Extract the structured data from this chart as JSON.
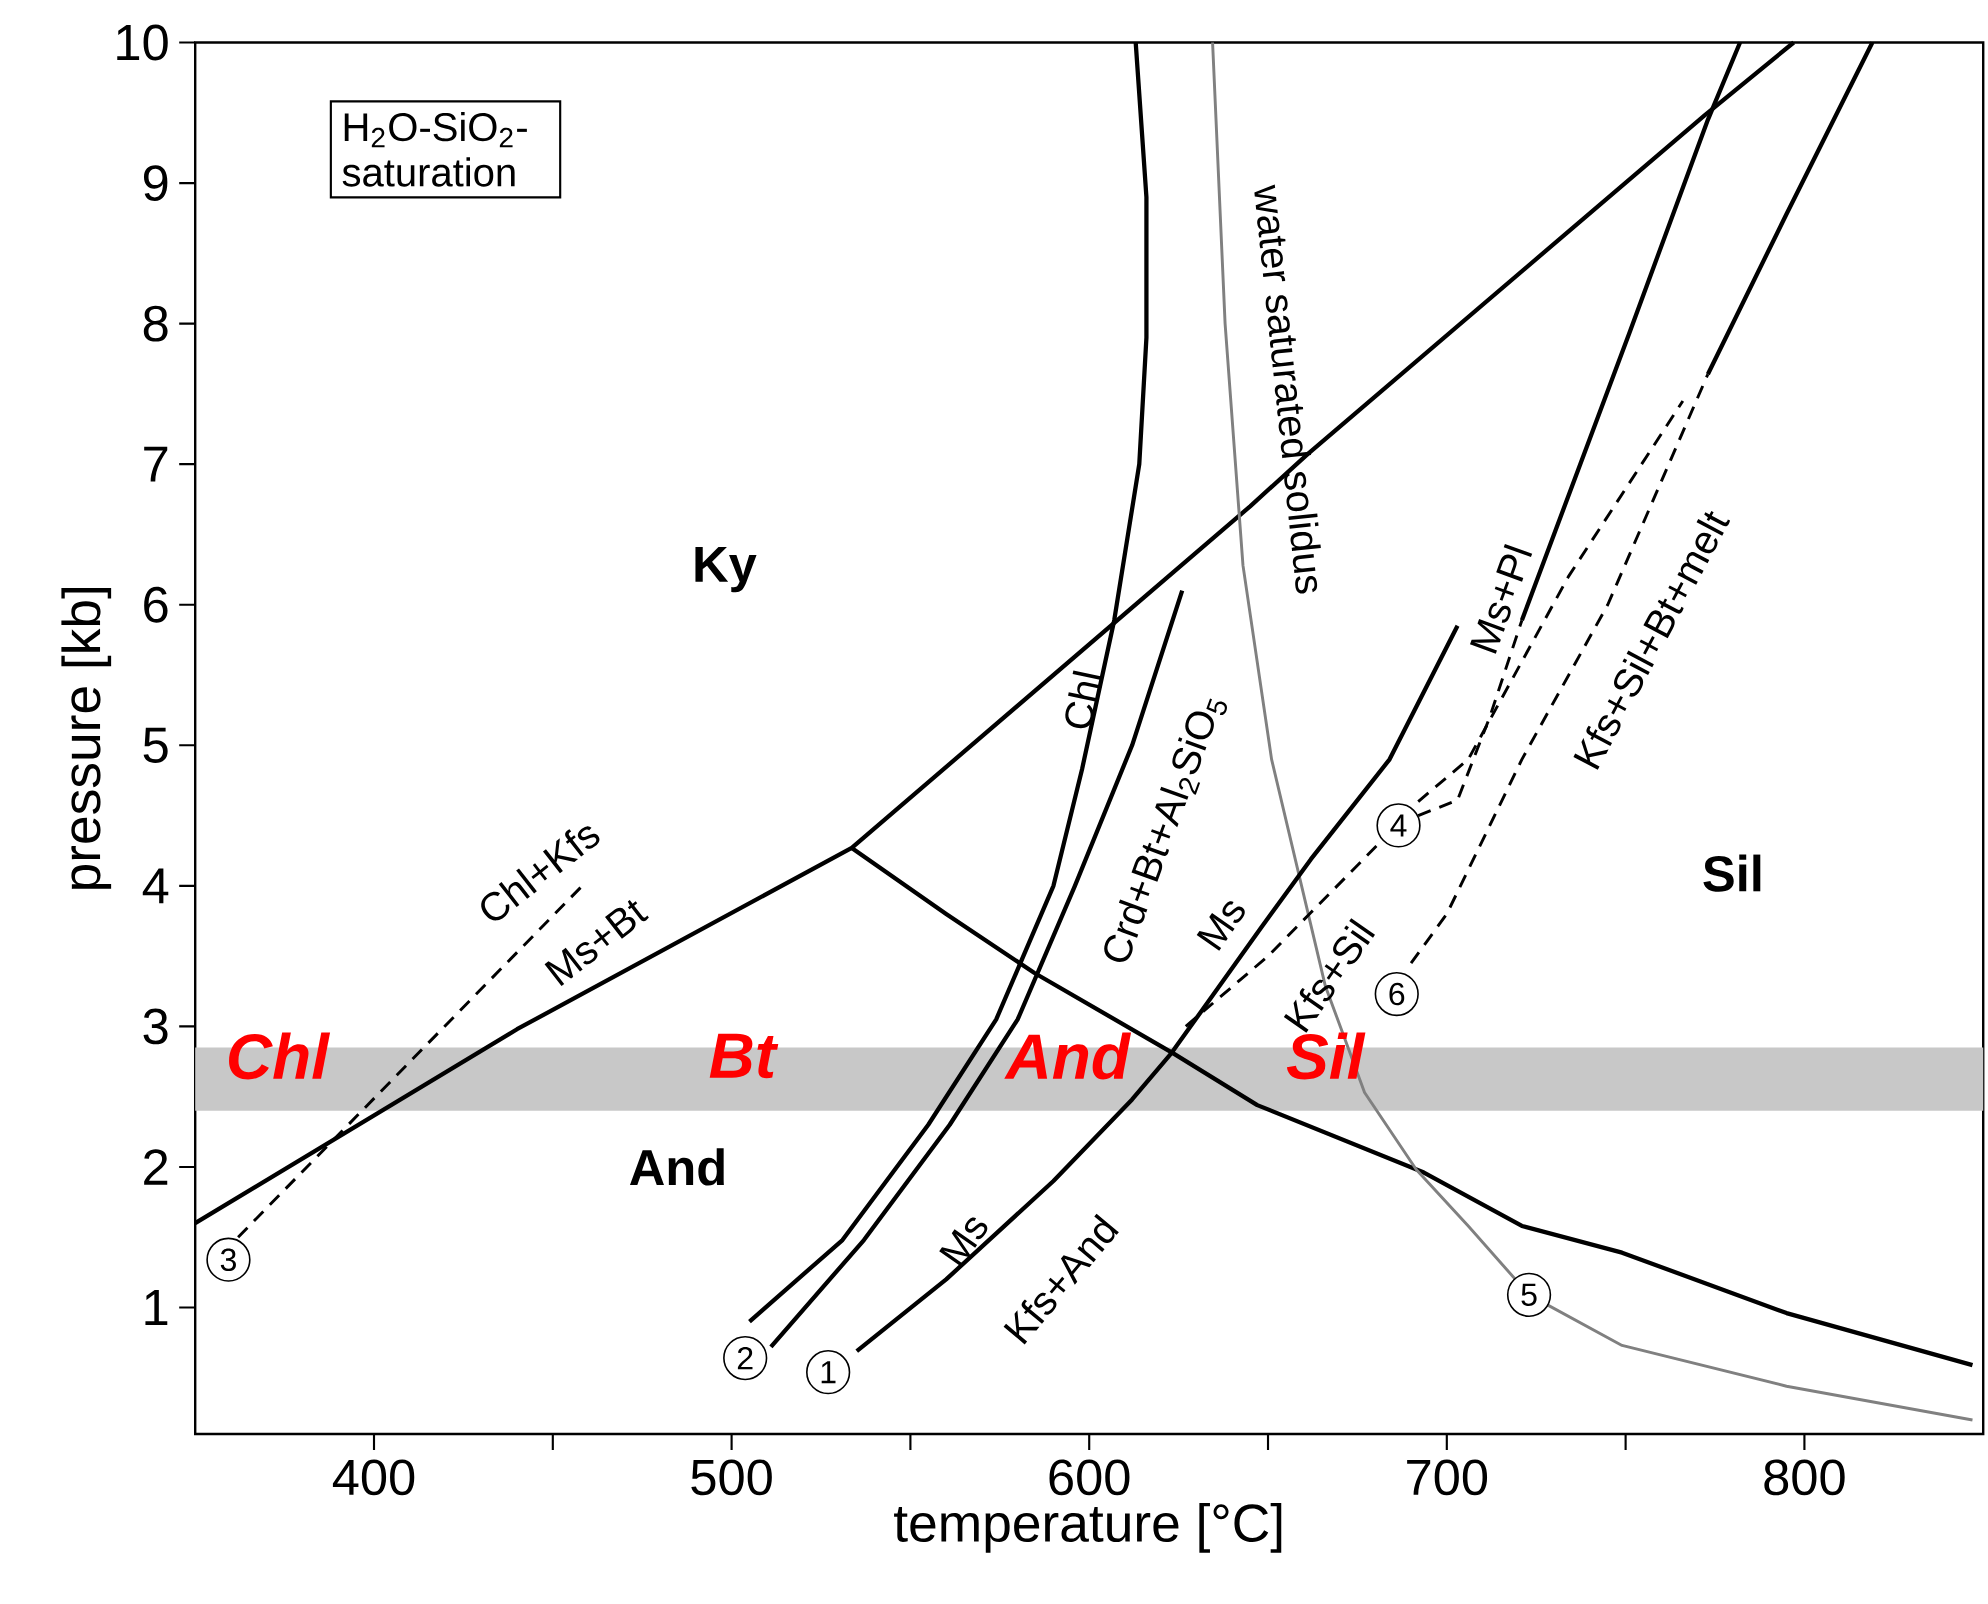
{
  "chart_data": {
    "type": "line",
    "xlabel": "temperature [°C]",
    "ylabel": "pressure [kb]",
    "xlim": [
      350,
      850
    ],
    "ylim": [
      0.1,
      10
    ],
    "xticks": [
      400,
      {
        "value": 450,
        "label": null
      },
      500,
      {
        "value": 550,
        "label": null
      },
      600,
      {
        "value": 650,
        "label": null
      },
      700,
      {
        "value": 750,
        "label": null
      },
      800
    ],
    "yticks": [
      1,
      2,
      3,
      4,
      5,
      6,
      7,
      8,
      9,
      10
    ],
    "grid": false,
    "marker": "none",
    "bands": [
      {
        "axis": "y",
        "from": 2.4,
        "to": 2.85,
        "color": "#c8c8c8"
      }
    ],
    "series": [
      {
        "color": "#000000",
        "line_style": "solid",
        "x": [
          350,
          440,
          533.6,
          645,
          661,
          772,
          797
        ],
        "values": [
          1.6,
          2.98,
          4.27,
          6.7,
          7.07,
          9.48,
          10.0
        ]
      },
      {
        "color": "#000000",
        "line_style": "solid",
        "x": [
          533.6,
          560,
          584.7,
          623.4,
          647,
          693.6,
          721,
          749,
          795,
          847
        ],
        "values": [
          4.27,
          3.8,
          3.38,
          2.81,
          2.44,
          1.96,
          1.58,
          1.39,
          0.96,
          0.59
        ]
      },
      {
        "color": "#000000",
        "line_style": "dashed",
        "x": [
          362,
          459
        ],
        "values": [
          1.5,
          4.02
        ]
      },
      {
        "color": "#000000",
        "line_style": "solid",
        "x": [
          505,
          531,
          555,
          574,
          590,
          598,
          607,
          614,
          616,
          616,
          613
        ],
        "values": [
          0.9,
          1.48,
          2.3,
          3.05,
          4.0,
          4.83,
          5.89,
          7.0,
          7.9,
          8.9,
          10.0
        ]
      },
      {
        "color": "#000000",
        "line_style": "solid",
        "x": [
          511,
          537,
          561,
          580,
          596,
          612,
          626
        ],
        "values": [
          0.72,
          1.48,
          2.3,
          3.05,
          4.0,
          5.0,
          6.1
        ]
      },
      {
        "color": "#808080",
        "line_style": "solid",
        "x": [
          634.5,
          638,
          643,
          651,
          666,
          677,
          691.5,
          706,
          723,
          749,
          795,
          847
        ],
        "values": [
          10.0,
          8.0,
          6.28,
          4.9,
          3.29,
          2.53,
          1.98,
          1.58,
          1.09,
          0.73,
          0.44,
          0.2
        ]
      },
      {
        "color": "#000000",
        "line_style": "solid",
        "x": [
          535,
          560,
          590,
          612,
          623,
          648,
          662,
          684,
          703
        ],
        "values": [
          0.69,
          1.2,
          1.9,
          2.48,
          2.81,
          3.7,
          4.19,
          4.9,
          5.85
        ]
      },
      {
        "color": "#000000",
        "line_style": "dashed",
        "x": [
          627,
          650,
          662,
          686
        ],
        "values": [
          3.0,
          3.5,
          3.81,
          4.43
        ]
      },
      {
        "color": "#000000",
        "line_style": "dashed",
        "x": [
          692,
          703,
          712,
          721
        ],
        "values": [
          4.5,
          4.61,
          5.2,
          5.89
        ]
      },
      {
        "color": "#000000",
        "line_style": "solid",
        "x": [
          721,
          751,
          773,
          782
        ],
        "values": [
          5.89,
          7.93,
          9.45,
          10.0
        ]
      },
      {
        "color": "#000000",
        "line_style": "dashed",
        "x": [
          692,
          706,
          734,
          766
        ],
        "values": [
          4.6,
          4.9,
          6.2,
          7.45
        ]
      },
      {
        "color": "#000000",
        "line_style": "dashed",
        "x": [
          690,
          700,
          721,
          745,
          773
        ],
        "values": [
          3.45,
          3.8,
          4.9,
          6.0,
          7.64
        ]
      },
      {
        "color": "#000000",
        "line_style": "solid",
        "x": [
          773,
          795,
          819
        ],
        "values": [
          7.64,
          8.78,
          10.0
        ]
      }
    ],
    "annotations": [
      "H$_{2}$O-SiO$_{2}$-saturation",
      "Ky",
      "And",
      "Sil",
      {
        "text": "Chl",
        "x": 373,
        "y": 2.79
      },
      {
        "text": "Bt",
        "x": 503,
        "y": 2.79
      },
      {
        "text": "And",
        "x": 594,
        "y": 2.79
      },
      {
        "text": "Sil",
        "x": 666,
        "y": 2.79
      },
      "Chl+Kfs",
      "Ms+Bt",
      "Chl",
      "Crd+Bt+Al$_{2}$SiO$_{5}$",
      "water saturated solidus",
      "Ms",
      {
        "text": "Kfs+Sil",
        "x": 667,
        "y": 3.36
      },
      "Ms",
      "Kfs+And",
      "Ms+Pl",
      "Kfs+Sil+Bt+melt",
      {
        "text": "1",
        "x": 527,
        "y": 0.54
      },
      {
        "text": "2",
        "x": 503.8,
        "y": 0.64
      },
      {
        "text": "3",
        "x": 359.3,
        "y": 1.34
      },
      {
        "text": "4",
        "x": 686.5,
        "y": 4.43
      },
      {
        "text": "5",
        "x": 723,
        "y": 1.09
      },
      {
        "text": "6",
        "x": 686,
        "y": 3.23
      }
    ]
  }
}
